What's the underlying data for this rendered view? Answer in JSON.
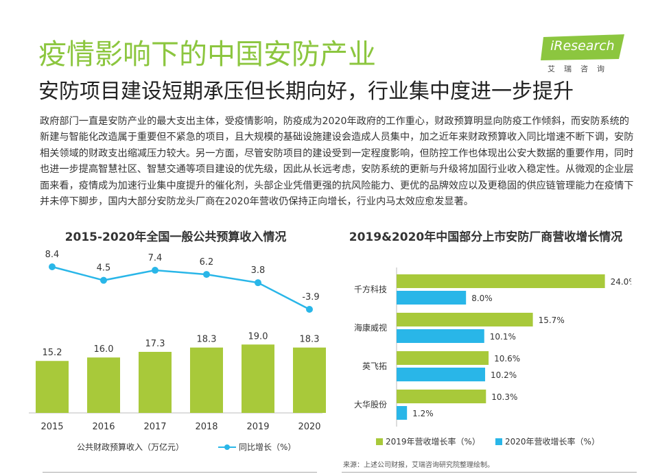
{
  "header": {
    "title": "疫情影响下的中国安防产业",
    "subtitle": "安防项目建设短期承压但长期向好，行业集中度进一步提升"
  },
  "logo": {
    "brand": "iResearch",
    "cn": "艾瑞咨询",
    "color": "#8cc63f"
  },
  "body_text": "政府部门一直是安防产业的最大支出主体，受疫情影响，防疫成为2020年政府的工作重心，财政预算明显向防疫工作倾斜，而安防系统的新建与智能化改造属于重要但不紧急的项目，且大规模的基础设施建设会造成人员集中，加之近年来财政预算收入同比增速不断下调，安防相关领域的财政支出缩减压力较大。另一方面，尽管安防项目的建设受到一定程度影响，但防控工作也体现出公安大数据的重要作用，同时也进一步提高智慧社区、智慧交通等项目建设的优先级，因此从长远考虑，安防系统的更新与升级将加固行业收入稳定性。从微观的企业层面来看，疫情成为加速行业集中度提升的催化剂，头部企业凭借更强的抗风险能力、更优的品牌效应以及更稳固的供应链管理能力在疫情下并未停下脚步，国内大部分安防龙头厂商在2020年营收仍保持正向增长，行业内马太效应愈发显著。",
  "colors": {
    "green": "#a8c93a",
    "blue": "#29b6e8"
  },
  "chart_data": [
    {
      "type": "bar",
      "title": "2015-2020年全国一般公共预算收入情况",
      "categories": [
        "2015",
        "2016",
        "2017",
        "2018",
        "2019",
        "2020"
      ],
      "series": [
        {
          "name": "公共财政预算收入（万亿元）",
          "type": "bar",
          "values": [
            15.2,
            16.0,
            17.3,
            18.3,
            19.0,
            18.3
          ],
          "labels": [
            "15.2",
            "16.0",
            "17.3",
            "18.3",
            "19.0",
            "18.3"
          ]
        },
        {
          "name": "同比增长（%）",
          "type": "line",
          "values": [
            8.4,
            4.5,
            7.4,
            6.2,
            3.8,
            -3.9
          ],
          "labels": [
            "8.4",
            "4.5",
            "7.4",
            "6.2",
            "3.8",
            "-3.9"
          ]
        }
      ],
      "ylim": [
        0,
        20
      ],
      "y2lim": [
        -6,
        10
      ],
      "legend": [
        "公共财政预算收入（万亿元）",
        "同比增长（%）"
      ]
    },
    {
      "type": "bar",
      "orientation": "horizontal",
      "title": "2019&2020年中国部分上市安防厂商营收增长情况",
      "categories": [
        "千方科技",
        "海康威视",
        "英飞拓",
        "大华股份"
      ],
      "series": [
        {
          "name": "2019年营收增长率（%）",
          "values": [
            24.0,
            15.7,
            10.6,
            10.3
          ],
          "labels": [
            "24.0%",
            "15.7%",
            "10.6%",
            "10.3%"
          ]
        },
        {
          "name": "2020年营收增长率（%）",
          "values": [
            8.0,
            10.1,
            10.2,
            1.2
          ],
          "labels": [
            "8.0%",
            "10.1%",
            "10.2%",
            "1.2%"
          ]
        }
      ],
      "xlim": [
        0,
        30
      ],
      "legend": [
        "2019年营收增长率（%）",
        "2020年营收增长率（%）"
      ]
    }
  ],
  "source": "来源：上述公司财报，艾瑞咨询研究院整理绘制。"
}
